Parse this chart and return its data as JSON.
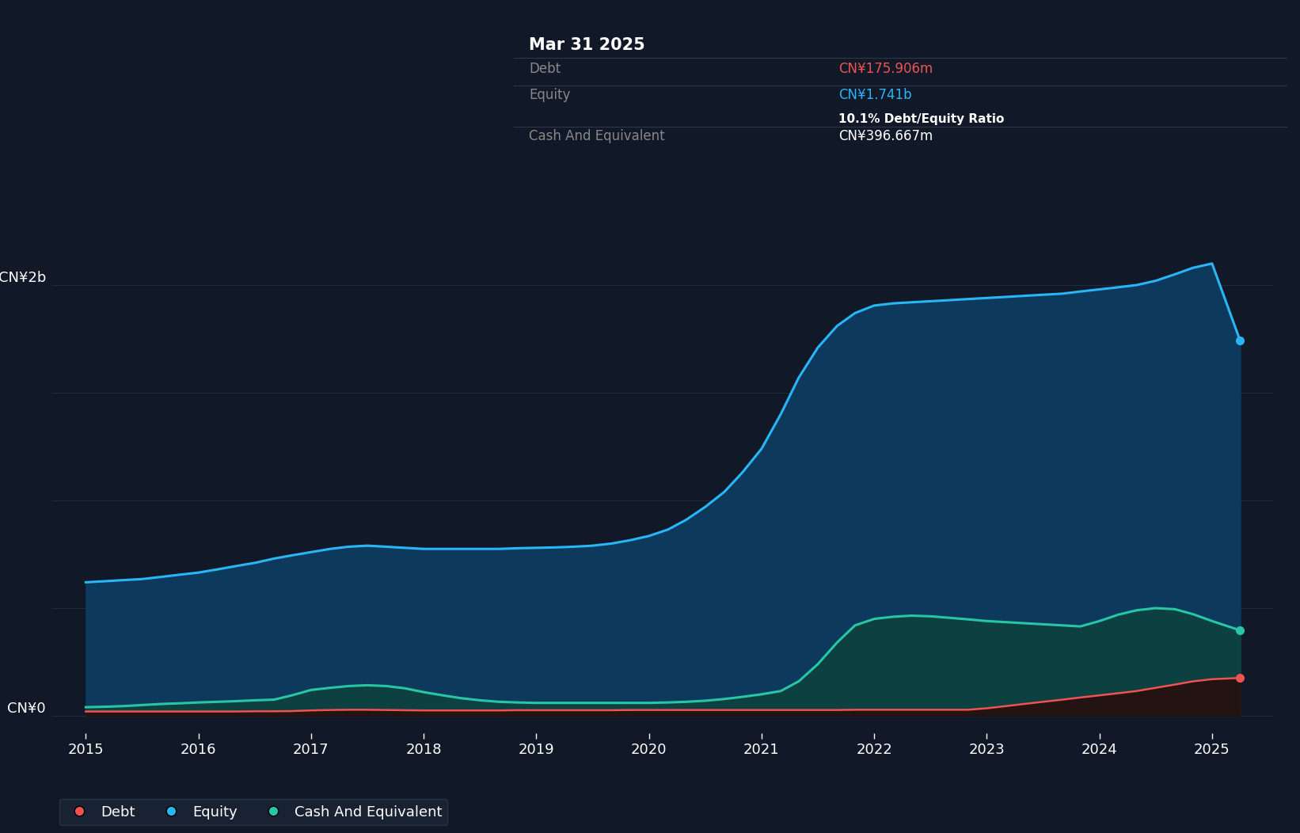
{
  "background_color": "#111827",
  "chart_bg_color": "#111827",
  "grid_color": "#1e2d3d",
  "years_x": [
    2015.0,
    2015.17,
    2015.33,
    2015.5,
    2015.67,
    2015.83,
    2016.0,
    2016.17,
    2016.33,
    2016.5,
    2016.67,
    2016.83,
    2017.0,
    2017.17,
    2017.33,
    2017.5,
    2017.67,
    2017.83,
    2018.0,
    2018.17,
    2018.33,
    2018.5,
    2018.67,
    2018.83,
    2019.0,
    2019.17,
    2019.33,
    2019.5,
    2019.67,
    2019.83,
    2020.0,
    2020.17,
    2020.33,
    2020.5,
    2020.67,
    2020.83,
    2021.0,
    2021.17,
    2021.33,
    2021.5,
    2021.67,
    2021.83,
    2022.0,
    2022.17,
    2022.33,
    2022.5,
    2022.67,
    2022.83,
    2023.0,
    2023.17,
    2023.33,
    2023.5,
    2023.67,
    2023.83,
    2024.0,
    2024.17,
    2024.33,
    2024.5,
    2024.67,
    2024.83,
    2025.0,
    2025.25
  ],
  "equity": [
    0.62,
    0.625,
    0.63,
    0.635,
    0.645,
    0.655,
    0.665,
    0.68,
    0.695,
    0.71,
    0.73,
    0.745,
    0.76,
    0.775,
    0.785,
    0.79,
    0.785,
    0.78,
    0.775,
    0.775,
    0.775,
    0.775,
    0.775,
    0.778,
    0.78,
    0.782,
    0.785,
    0.79,
    0.8,
    0.815,
    0.835,
    0.865,
    0.91,
    0.97,
    1.04,
    1.13,
    1.24,
    1.4,
    1.57,
    1.71,
    1.81,
    1.87,
    1.905,
    1.915,
    1.92,
    1.925,
    1.93,
    1.935,
    1.94,
    1.945,
    1.95,
    1.955,
    1.96,
    1.97,
    1.98,
    1.99,
    2.0,
    2.02,
    2.05,
    2.08,
    2.1,
    1.741
  ],
  "debt": [
    0.02,
    0.02,
    0.02,
    0.02,
    0.02,
    0.02,
    0.02,
    0.02,
    0.02,
    0.021,
    0.021,
    0.022,
    0.025,
    0.027,
    0.028,
    0.028,
    0.027,
    0.026,
    0.025,
    0.025,
    0.025,
    0.025,
    0.025,
    0.026,
    0.026,
    0.026,
    0.026,
    0.026,
    0.026,
    0.027,
    0.027,
    0.027,
    0.027,
    0.027,
    0.027,
    0.027,
    0.027,
    0.027,
    0.027,
    0.027,
    0.027,
    0.028,
    0.028,
    0.028,
    0.028,
    0.028,
    0.028,
    0.028,
    0.035,
    0.045,
    0.055,
    0.065,
    0.075,
    0.085,
    0.095,
    0.105,
    0.115,
    0.13,
    0.145,
    0.16,
    0.17,
    0.1759
  ],
  "cash": [
    0.04,
    0.042,
    0.045,
    0.05,
    0.055,
    0.058,
    0.062,
    0.065,
    0.068,
    0.072,
    0.075,
    0.095,
    0.12,
    0.13,
    0.138,
    0.142,
    0.138,
    0.128,
    0.11,
    0.095,
    0.082,
    0.072,
    0.065,
    0.062,
    0.06,
    0.06,
    0.06,
    0.06,
    0.06,
    0.06,
    0.06,
    0.062,
    0.065,
    0.07,
    0.078,
    0.088,
    0.1,
    0.115,
    0.16,
    0.24,
    0.34,
    0.42,
    0.45,
    0.46,
    0.465,
    0.462,
    0.455,
    0.448,
    0.44,
    0.435,
    0.43,
    0.425,
    0.42,
    0.415,
    0.44,
    0.47,
    0.49,
    0.5,
    0.495,
    0.472,
    0.44,
    0.3967
  ],
  "equity_color": "#29b6f6",
  "debt_color": "#ef5350",
  "cash_color": "#26c6a6",
  "equity_fill_color": "#0d3a5c",
  "cash_fill_color": "#0d4040",
  "xmin": 2014.7,
  "xmax": 2025.55,
  "ymin": -0.08,
  "ymax": 2.55,
  "xticks": [
    2015,
    2016,
    2017,
    2018,
    2019,
    2020,
    2021,
    2022,
    2023,
    2024,
    2025
  ],
  "grid_y_values": [
    0.0,
    0.5,
    1.0,
    1.5,
    2.0
  ],
  "ylabel_2b": "CN¥2b",
  "ylabel_0": "CN¥0",
  "ylabel_2b_ydata": 2.0,
  "ylabel_0_ydata": 0.0,
  "tooltip_date": "Mar 31 2025",
  "tooltip_debt_label": "Debt",
  "tooltip_debt_val": "CN¥175.906m",
  "tooltip_equity_label": "Equity",
  "tooltip_equity_val": "CN¥1.741b",
  "tooltip_ratio": "10.1% Debt/Equity Ratio",
  "tooltip_cash_label": "Cash And Equivalent",
  "tooltip_cash_val": "CN¥396.667m",
  "tooltip_bg": "#050a0f",
  "tooltip_border": "#2a3a4a",
  "legend_items": [
    "Debt",
    "Equity",
    "Cash And Equivalent"
  ],
  "legend_colors": [
    "#ef5350",
    "#29b6f6",
    "#26c6a6"
  ],
  "legend_bg": "#1a2535",
  "legend_border": "#2a3a4a"
}
